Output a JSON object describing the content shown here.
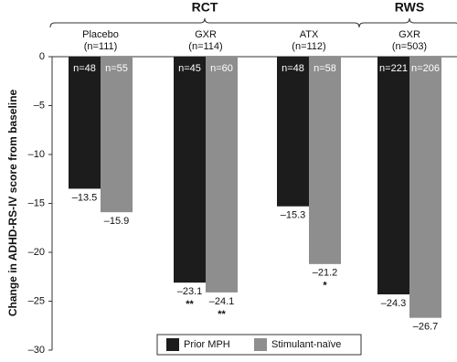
{
  "chart_data": {
    "type": "bar",
    "ylabel": "Change in ADHD-RS-IV score from baseline",
    "categories": [
      "Placebo",
      "GXR",
      "ATX",
      "GXR"
    ],
    "category_sublabels": [
      "(n=111)",
      "(n=114)",
      "(n=112)",
      "(n=503)"
    ],
    "brackets": [
      {
        "label": "RCT",
        "categories": [
          0,
          2
        ]
      },
      {
        "label": "RWS",
        "categories": [
          3,
          3
        ]
      }
    ],
    "series": [
      {
        "name": "Prior MPH",
        "color": "#1c1c1c",
        "values": [
          -13.5,
          -23.1,
          -15.3,
          -24.3
        ],
        "value_labels": [
          "–13.5",
          "–23.1",
          "–15.3",
          "–24.3"
        ],
        "n_labels": [
          "n=48",
          "n=45",
          "n=48",
          "n=221"
        ],
        "annotations": [
          null,
          "**",
          null,
          null
        ]
      },
      {
        "name": "Stimulant-naïve",
        "color": "#8e8e8e",
        "values": [
          -15.9,
          -24.1,
          -21.2,
          -26.7
        ],
        "value_labels": [
          "–15.9",
          "–24.1",
          "–21.2",
          "–26.7"
        ],
        "n_labels": [
          "n=55",
          "n=60",
          "n=58",
          "n=206"
        ],
        "annotations": [
          null,
          "**",
          "*",
          null
        ]
      }
    ],
    "ylim": [
      0,
      -30
    ],
    "yticks": [
      0,
      {
        "value": -5,
        "label": "–5"
      },
      {
        "value": -10,
        "label": "–10"
      },
      {
        "value": -15,
        "label": "–15"
      },
      {
        "value": -20,
        "label": "–20"
      },
      {
        "value": -25,
        "label": "–25"
      },
      {
        "value": -30,
        "label": "–30"
      }
    ],
    "legend": "bottom"
  }
}
